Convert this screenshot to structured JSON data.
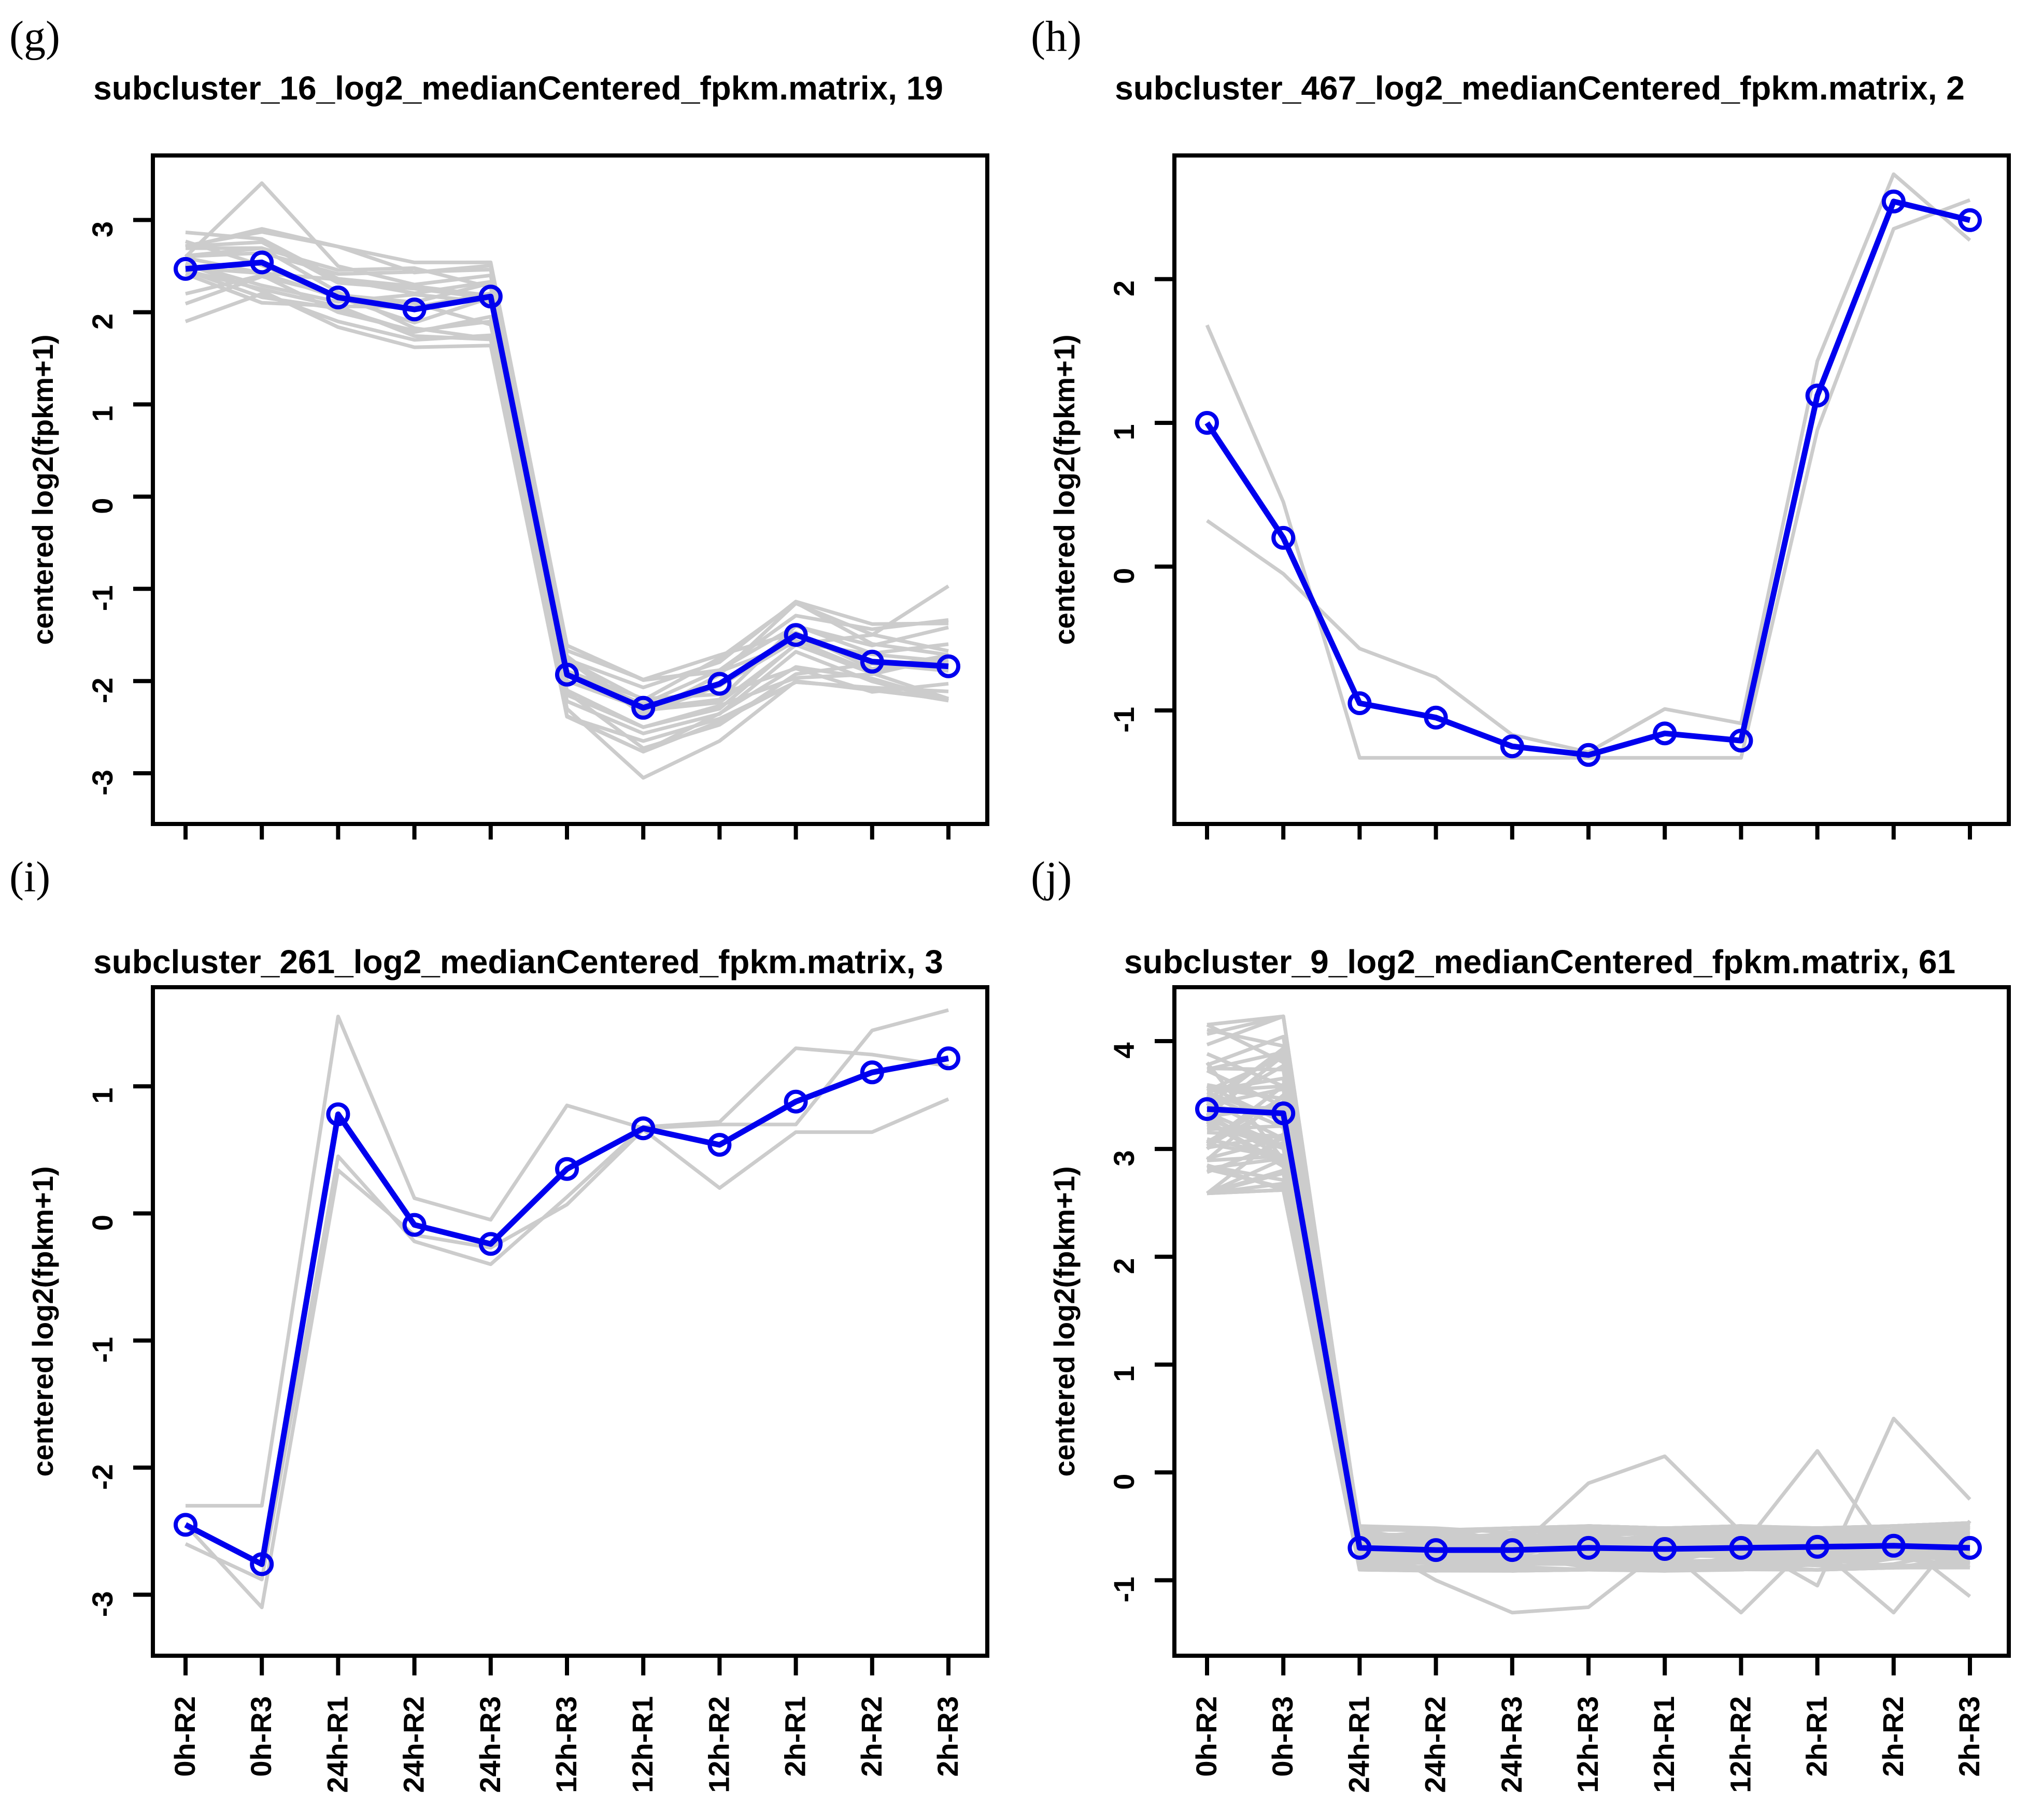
{
  "figure": {
    "type": "multi-panel-line-figure",
    "background": "#FFFFFF",
    "text_color": "#000000"
  },
  "chart_data": [
    {
      "type": "line",
      "panel_label": "(g)",
      "title": "subcluster_16_log2_medianCentered_fpkm.matrix, 19",
      "ylabel": "centered log2(fpkm+1)",
      "categories": [
        "0h-R2",
        "0h-R3",
        "24h-R1",
        "24h-R2",
        "24h-R3",
        "12h-R3",
        "12h-R1",
        "12h-R2",
        "2h-R1",
        "2h-R2",
        "2h-R3"
      ],
      "show_x_labels": false,
      "yticks": [
        -3,
        -2,
        -1,
        0,
        1,
        2,
        3
      ],
      "ylim": [
        -3.55,
        3.7
      ],
      "grid": false,
      "legend": "none",
      "mean_color": "#0000EE",
      "member_color": "#CCCCCC",
      "n_members": 19,
      "mean_values": [
        2.47,
        2.54,
        2.16,
        2.03,
        2.17,
        -1.93,
        -2.29,
        -2.03,
        -1.5,
        -1.79,
        -1.84
      ],
      "member_lines": [
        [
          2.6,
          3.4,
          2.5,
          2.3,
          2.4,
          -2.0,
          -2.3,
          -2.2,
          -1.4,
          -1.7,
          -1.6
        ],
        [
          2.2,
          2.4,
          2.0,
          1.8,
          1.9,
          -2.3,
          -3.05,
          -2.65,
          -2.0,
          -2.1,
          -2.2
        ],
        [
          1.9,
          2.2,
          1.9,
          1.7,
          1.75,
          -2.1,
          -2.5,
          -2.3,
          -1.6,
          -1.5,
          -0.97
        ]
      ],
      "band": {
        "count": 16,
        "seed": 11,
        "min": [
          2.05,
          2.05,
          1.8,
          1.58,
          1.6,
          -2.42,
          -2.8,
          -2.52,
          -2.05,
          -2.15,
          -2.25
        ],
        "max": [
          3.1,
          3.05,
          2.75,
          2.58,
          2.58,
          -1.58,
          -1.95,
          -1.62,
          -1.1,
          -1.35,
          -1.3
        ]
      }
    },
    {
      "type": "line",
      "panel_label": "(h)",
      "title": "subcluster_467_log2_medianCentered_fpkm.matrix, 2",
      "ylabel": "centered log2(fpkm+1)",
      "categories": [
        "0h-R2",
        "0h-R3",
        "24h-R1",
        "24h-R2",
        "24h-R3",
        "12h-R3",
        "12h-R1",
        "12h-R2",
        "2h-R1",
        "2h-R2",
        "2h-R3"
      ],
      "show_x_labels": false,
      "yticks": [
        -1,
        0,
        1,
        2
      ],
      "ylim": [
        -1.79,
        2.86
      ],
      "grid": false,
      "legend": "none",
      "mean_color": "#0000EE",
      "member_color": "#CCCCCC",
      "n_members": 2,
      "mean_values": [
        1.0,
        0.2,
        -0.95,
        -1.05,
        -1.25,
        -1.31,
        -1.16,
        -1.21,
        1.19,
        2.54,
        2.41
      ],
      "member_lines": [
        [
          1.68,
          0.45,
          -1.33,
          -1.33,
          -1.33,
          -1.33,
          -1.33,
          -1.33,
          0.95,
          2.35,
          2.55
        ],
        [
          0.32,
          -0.05,
          -0.57,
          -0.77,
          -1.17,
          -1.29,
          -0.99,
          -1.09,
          1.43,
          2.73,
          2.27
        ]
      ],
      "band": {
        "count": 0,
        "seed": 1,
        "min": [],
        "max": []
      }
    },
    {
      "type": "line",
      "panel_label": "(i)",
      "title": "subcluster_261_log2_medianCentered_fpkm.matrix, 3",
      "ylabel": "centered log2(fpkm+1)",
      "categories": [
        "0h-R2",
        "0h-R3",
        "24h-R1",
        "24h-R2",
        "24h-R3",
        "12h-R3",
        "12h-R1",
        "12h-R2",
        "2h-R1",
        "2h-R2",
        "2h-R3"
      ],
      "show_x_labels": true,
      "yticks": [
        -3,
        -2,
        -1,
        0,
        1
      ],
      "ylim": [
        -3.48,
        1.78
      ],
      "grid": false,
      "legend": "none",
      "mean_color": "#0000EE",
      "member_color": "#CCCCCC",
      "n_members": 3,
      "mean_values": [
        -2.45,
        -2.76,
        0.78,
        -0.09,
        -0.24,
        0.35,
        0.67,
        0.54,
        0.88,
        1.11,
        1.22
      ],
      "member_lines": [
        [
          -2.3,
          -2.3,
          1.55,
          0.12,
          -0.05,
          0.85,
          0.67,
          0.7,
          0.7,
          1.44,
          1.6
        ],
        [
          -2.6,
          -2.88,
          0.45,
          -0.22,
          -0.4,
          0.13,
          0.68,
          0.72,
          1.3,
          1.25,
          1.16
        ],
        [
          -2.45,
          -3.1,
          0.34,
          -0.17,
          -0.27,
          0.07,
          0.66,
          0.2,
          0.64,
          0.64,
          0.9
        ]
      ],
      "band": {
        "count": 0,
        "seed": 2,
        "min": [],
        "max": []
      }
    },
    {
      "type": "line",
      "panel_label": "(j)",
      "title": "subcluster_9_log2_medianCentered_fpkm.matrix, 61",
      "ylabel": "centered log2(fpkm+1)",
      "categories": [
        "0h-R2",
        "0h-R3",
        "24h-R1",
        "24h-R2",
        "24h-R3",
        "12h-R3",
        "12h-R1",
        "12h-R2",
        "2h-R1",
        "2h-R2",
        "2h-R3"
      ],
      "show_x_labels": true,
      "yticks": [
        -1,
        0,
        1,
        2,
        3,
        4
      ],
      "ylim": [
        -1.7,
        4.5
      ],
      "grid": false,
      "legend": "none",
      "mean_color": "#0000EE",
      "member_color": "#CCCCCC",
      "n_members": 61,
      "mean_values": [
        3.37,
        3.33,
        -0.7,
        -0.72,
        -0.72,
        -0.7,
        -0.71,
        -0.7,
        -0.69,
        -0.68,
        -0.7
      ],
      "member_lines": [
        [
          3.4,
          3.3,
          -0.6,
          -1.0,
          -1.3,
          -1.25,
          -0.7,
          -0.6,
          -0.65,
          -0.7,
          -0.6
        ],
        [
          3.0,
          3.6,
          -0.7,
          -0.65,
          -0.75,
          -0.1,
          0.15,
          -0.55,
          -0.75,
          -0.65,
          -0.7
        ],
        [
          3.8,
          2.9,
          -0.8,
          -0.7,
          -0.6,
          -0.75,
          -0.7,
          -1.3,
          -0.6,
          -0.75,
          -0.65
        ],
        [
          3.2,
          3.1,
          -0.7,
          -0.75,
          -0.85,
          -0.7,
          -0.65,
          -0.7,
          0.2,
          -0.8,
          -0.7
        ],
        [
          2.9,
          3.5,
          -0.65,
          -0.7,
          -0.75,
          -0.6,
          -0.7,
          -0.65,
          -1.05,
          0.5,
          -0.25
        ],
        [
          3.5,
          3.2,
          -0.8,
          -0.65,
          -0.7,
          -0.8,
          -0.75,
          -0.7,
          -0.7,
          -1.3,
          -0.45
        ],
        [
          3.3,
          3.4,
          -0.7,
          -0.8,
          -0.65,
          -0.7,
          -0.6,
          -0.75,
          -0.65,
          -0.6,
          -1.15
        ]
      ],
      "band": {
        "count": 54,
        "seed": 42,
        "min": [
          2.52,
          2.55,
          -0.92,
          -0.93,
          -0.93,
          -0.92,
          -0.93,
          -0.92,
          -0.92,
          -0.9,
          -0.9
        ],
        "max": [
          4.22,
          4.3,
          -0.48,
          -0.5,
          -0.5,
          -0.48,
          -0.5,
          -0.48,
          -0.5,
          -0.48,
          -0.45
        ]
      }
    }
  ]
}
